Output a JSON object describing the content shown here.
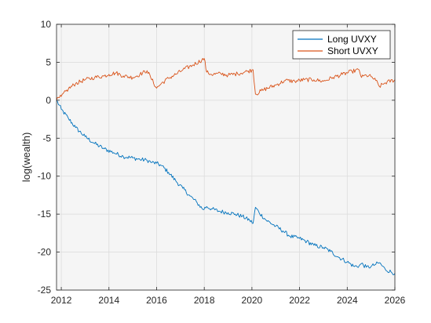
{
  "chart_data": {
    "type": "line",
    "title": "",
    "xlabel": "",
    "ylabel": "log(wealth)",
    "xlim": [
      2011.8,
      2026
    ],
    "ylim": [
      -25,
      10
    ],
    "xticks": [
      2012,
      2014,
      2016,
      2018,
      2020,
      2022,
      2024,
      2026
    ],
    "yticks": [
      -25,
      -20,
      -15,
      -10,
      -5,
      0,
      5,
      10
    ],
    "grid": true,
    "legend_position": "top-right",
    "series": [
      {
        "name": "Long UVXY",
        "color": "#0072BD",
        "x": [
          2011.8,
          2012.0,
          2012.3,
          2012.6,
          2013.0,
          2013.4,
          2013.8,
          2014.2,
          2014.6,
          2015.0,
          2015.3,
          2015.6,
          2015.8,
          2016.0,
          2016.2,
          2016.5,
          2016.8,
          2017.1,
          2017.4,
          2017.7,
          2017.95,
          2018.1,
          2018.3,
          2018.6,
          2019.0,
          2019.3,
          2019.6,
          2019.9,
          2020.05,
          2020.15,
          2020.3,
          2020.6,
          2021.0,
          2021.3,
          2021.6,
          2022.0,
          2022.3,
          2022.6,
          2023.0,
          2023.3,
          2023.6,
          2024.0,
          2024.3,
          2024.5,
          2024.6,
          2024.8,
          2025.0,
          2025.2,
          2025.35,
          2025.6,
          2026.0
        ],
        "y": [
          0,
          -1.2,
          -2.4,
          -3.6,
          -4.8,
          -5.7,
          -6.4,
          -6.9,
          -7.4,
          -7.6,
          -7.8,
          -7.9,
          -8.2,
          -8.3,
          -8.6,
          -9.5,
          -10.6,
          -11.6,
          -12.6,
          -13.5,
          -14.4,
          -14.0,
          -14.3,
          -14.6,
          -14.8,
          -15.0,
          -15.3,
          -15.8,
          -16.2,
          -14.1,
          -14.8,
          -15.8,
          -16.6,
          -17.2,
          -17.9,
          -18.2,
          -18.6,
          -19.1,
          -19.4,
          -19.9,
          -20.6,
          -21.3,
          -21.9,
          -21.8,
          -21.5,
          -22.0,
          -21.9,
          -21.6,
          -21.4,
          -22.3,
          -22.8
        ]
      },
      {
        "name": "Short UVXY",
        "color": "#D95319",
        "x": [
          2011.8,
          2012.0,
          2012.3,
          2012.6,
          2013.0,
          2013.4,
          2013.8,
          2014.0,
          2014.3,
          2014.6,
          2015.0,
          2015.3,
          2015.6,
          2015.75,
          2016.0,
          2016.2,
          2016.5,
          2016.8,
          2017.1,
          2017.5,
          2017.9,
          2018.0,
          2018.1,
          2018.3,
          2018.7,
          2019.0,
          2019.4,
          2019.8,
          2020.05,
          2020.15,
          2020.5,
          2021.0,
          2021.4,
          2021.8,
          2022.2,
          2022.6,
          2023.0,
          2023.4,
          2023.8,
          2024.2,
          2024.5,
          2024.6,
          2024.8,
          2025.0,
          2025.2,
          2025.35,
          2025.6,
          2026.0
        ],
        "y": [
          0,
          0.5,
          1.5,
          2.2,
          2.7,
          3.0,
          3.2,
          3.4,
          3.6,
          3.2,
          3.0,
          3.4,
          3.9,
          3.0,
          1.6,
          2.2,
          2.9,
          3.4,
          4.0,
          4.6,
          5.3,
          5.5,
          3.7,
          3.4,
          3.5,
          3.3,
          3.5,
          3.8,
          4.0,
          0.8,
          1.4,
          2.0,
          2.6,
          2.5,
          2.7,
          2.7,
          2.5,
          3.0,
          3.4,
          3.8,
          4.0,
          3.0,
          3.3,
          3.1,
          2.6,
          1.8,
          2.3,
          2.7
        ]
      }
    ]
  }
}
